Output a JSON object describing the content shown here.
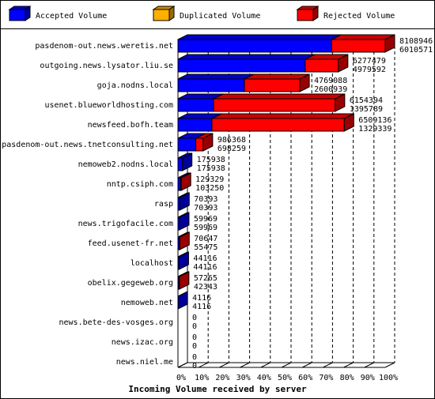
{
  "chart_data": {
    "type": "stacked-bar-3d-horizontal",
    "title": "Incoming Volume received by server",
    "categories": [
      "pasdenom-out.news.weretis.net",
      "outgoing.news.lysator.liu.se",
      "goja.nodns.local",
      "usenet.blueworldhosting.com",
      "newsfeed.bofh.team",
      "pasdenom-out.news.tnetconsulting.net",
      "nemoweb2.nodns.local",
      "nntp.csiph.com",
      "rasp",
      "news.trigofacile.com",
      "feed.usenet-fr.net",
      "localhost",
      "obelix.gegeweb.org",
      "nemoweb.net",
      "news.bete-des-vosges.org",
      "news.izac.org",
      "news.niel.me"
    ],
    "totals": [
      8108946,
      6277479,
      4769088,
      6154394,
      6509136,
      986368,
      175938,
      129329,
      70393,
      59969,
      70647,
      44116,
      57265,
      4116,
      0,
      0,
      0
    ],
    "series": [
      {
        "name": "Accepted Volume",
        "color": "#0000ff",
        "values": [
          6010571,
          4979592,
          2600939,
          1395789,
          1329339,
          698259,
          175938,
          103250,
          70393,
          59969,
          55475,
          44116,
          42343,
          4116,
          0,
          0,
          0
        ]
      },
      {
        "name": "Duplicated Volume",
        "color": "#ffb000",
        "values": [
          0,
          0,
          0,
          0,
          0,
          0,
          0,
          0,
          0,
          0,
          0,
          0,
          0,
          0,
          0,
          0,
          0
        ]
      },
      {
        "name": "Rejected Volume",
        "color": "#ff0000",
        "values": [
          2098375,
          1297887,
          2168149,
          4758605,
          5179797,
          288109,
          0,
          26079,
          0,
          0,
          15172,
          0,
          14922,
          0,
          0,
          0,
          0
        ]
      }
    ],
    "xlim": [
      0,
      8108946
    ],
    "xticks": [
      {
        "value": 0,
        "label": "0%"
      },
      {
        "value": 810894.6,
        "label": "10%"
      },
      {
        "value": 1621789.2,
        "label": "20%"
      },
      {
        "value": 2432683.8,
        "label": "30%"
      },
      {
        "value": 3243578.4,
        "label": "40%"
      },
      {
        "value": 4054473,
        "label": "50%"
      },
      {
        "value": 4865367.6,
        "label": "60%"
      },
      {
        "value": 5676262.2,
        "label": "70%"
      },
      {
        "value": 6487156.8,
        "label": "80%"
      },
      {
        "value": 7298051.4,
        "label": "90%"
      },
      {
        "value": 8108946,
        "label": "100%"
      }
    ],
    "grid": true
  }
}
